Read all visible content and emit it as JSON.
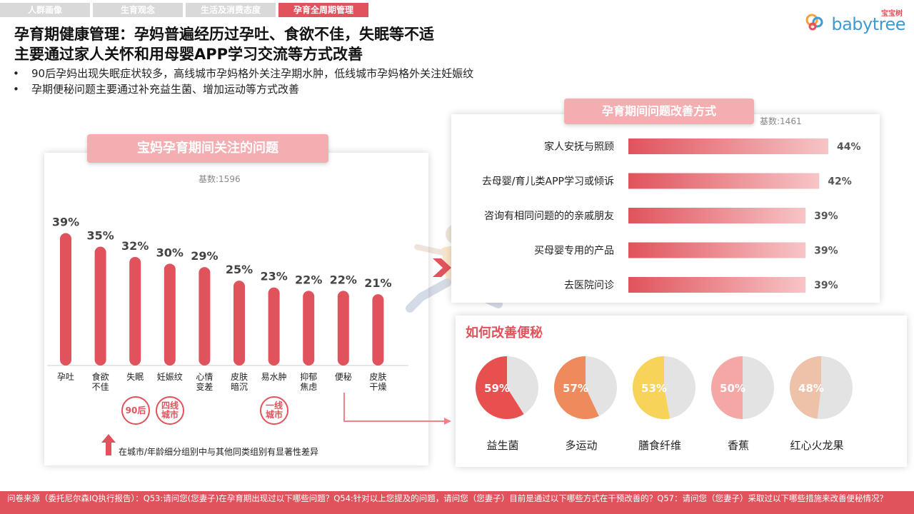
{
  "tabs": [
    {
      "label": "人群画像",
      "active": false
    },
    {
      "label": "生育观念",
      "active": false
    },
    {
      "label": "生活及消费态度",
      "active": false
    },
    {
      "label": "孕育全周期管理",
      "active": true
    }
  ],
  "logo": {
    "cn": "宝宝树",
    "en": "babytree"
  },
  "title": {
    "line1": "孕育期健康管理：孕妈普遍经历过孕吐、食欲不佳，失眠等不适",
    "line2": "主要通过家人关怀和用母婴APP学习交流等方式改善"
  },
  "bullets": [
    "90后孕妈出现失眠症状较多，高线城市孕妈格外关注孕期水肿，低线城市孕妈格外关注妊娠纹",
    "孕期便秘问题主要通过补充益生菌、增加运动等方式改善"
  ],
  "left_panel": {
    "title": "宝妈孕育期间关注的问题",
    "base": "基数:1596",
    "flags": [
      "90后",
      "四线\n城市",
      "一线\n城市"
    ],
    "legend": "在城市/年龄细分组别中与其他同类组别有显著性差异"
  },
  "right_top": {
    "title": "孕育期间问题改善方式",
    "base": "基数:1461"
  },
  "right_bottom": {
    "title": "如何改善便秘"
  },
  "footer": {
    "text": "问卷来源（委托尼尔森IQ执行报告）：Q53:请问您(您妻子)在孕育期出现过以下哪些问题？Q54:针对以上您提及的问题，请问您（您妻子）目前是通过以下哪些方式在干预改善的？Q57：请问您（您妻子）采取过以下哪些措施来改善便秘情况？"
  },
  "colors": {
    "accent": "#e0535c",
    "bar": "#e0535c",
    "pill": "#f4aeb2"
  },
  "chart_data": [
    {
      "type": "bar",
      "title": "宝妈孕育期间关注的问题",
      "categories": [
        "孕吐",
        "食欲\n不佳",
        "失眠",
        "妊娠纹",
        "心情\n变差",
        "皮肤\n暗沉",
        "易水肿",
        "抑郁\n焦虑",
        "便秘",
        "皮肤\n干燥"
      ],
      "values": [
        39,
        35,
        32,
        30,
        29,
        25,
        23,
        22,
        22,
        21
      ],
      "value_labels": [
        "39%",
        "35%",
        "32%",
        "30%",
        "29%",
        "25%",
        "23%",
        "22%",
        "22%",
        "21%"
      ],
      "ylim": [
        0,
        45
      ]
    },
    {
      "type": "bar",
      "orientation": "horizontal",
      "title": "孕育期间问题改善方式",
      "categories": [
        "家人安抚与照顾",
        "去母婴/育儿类APP学习或倾诉",
        "咨询有相同问题的的亲戚朋友",
        "买母婴专用的产品",
        "去医院问诊"
      ],
      "values": [
        44,
        42,
        39,
        39,
        39
      ],
      "value_labels": [
        "44%",
        "42%",
        "39%",
        "39%",
        "39%"
      ],
      "xlim": [
        0,
        46
      ]
    },
    {
      "type": "pie",
      "title": "如何改善便秘",
      "categories": [
        "益生菌",
        "多运动",
        "膳食纤维",
        "香蕉",
        "红心火龙果"
      ],
      "values": [
        59,
        57,
        53,
        50,
        48
      ],
      "value_labels": [
        "59%",
        "57%",
        "53%",
        "50%",
        "48%"
      ],
      "colors": [
        "#e8504f",
        "#ee8a5c",
        "#f8d35a",
        "#f4a7a5",
        "#edc2a8"
      ]
    }
  ]
}
